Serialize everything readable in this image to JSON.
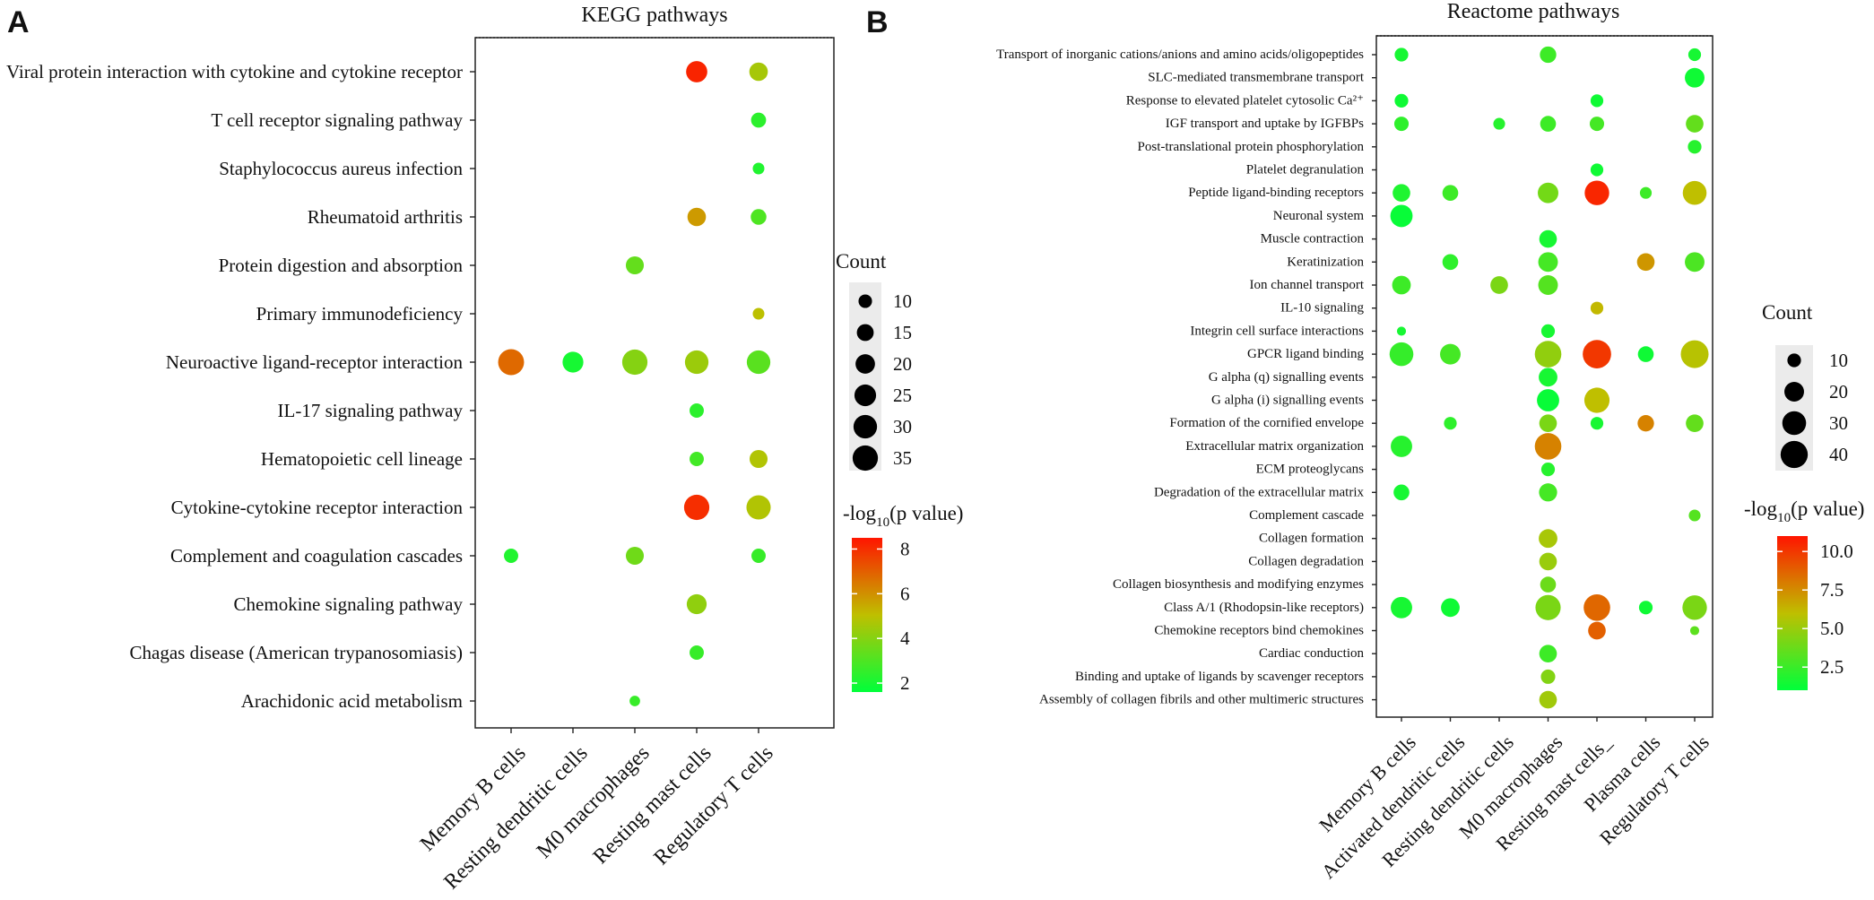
{
  "color_scale": {
    "low": "#00ff3a",
    "mid": "#bfbf00",
    "high": "#ff1500"
  },
  "chart_data": [
    {
      "type": "scatter",
      "panel_label": "A",
      "title": "KEGG pathways",
      "x_categories": [
        "Memory B cells",
        "Resting dendritic cells",
        "M0 macrophages",
        "Resting mast cells",
        "Regulatory T cells"
      ],
      "y_categories": [
        "Viral protein interaction with cytokine and cytokine receptor",
        "T cell receptor signaling pathway",
        "Staphylococcus aureus infection",
        "Rheumatoid arthritis",
        "Protein digestion and absorption",
        "Primary immunodeficiency",
        "Neuroactive ligand-receptor interaction",
        "IL-17 signaling pathway",
        "Hematopoietic cell lineage",
        "Cytokine-cytokine receptor interaction",
        "Complement and coagulation cascades",
        "Chemokine signaling pathway",
        "Chagas disease (American trypanosomiasis)",
        "Arachidonic acid metabolism"
      ],
      "points": [
        {
          "x": "Resting mast cells",
          "y": "Viral protein interaction with cytokine and cytokine receptor",
          "count": 24,
          "neg_log10_p": 8.2
        },
        {
          "x": "Regulatory T cells",
          "y": "Viral protein interaction with cytokine and cytokine receptor",
          "count": 18,
          "neg_log10_p": 4.6
        },
        {
          "x": "Regulatory T cells",
          "y": "T cell receptor signaling pathway",
          "count": 12,
          "neg_log10_p": 2.4
        },
        {
          "x": "Regulatory T cells",
          "y": "Staphylococcus aureus infection",
          "count": 8,
          "neg_log10_p": 2.2
        },
        {
          "x": "Resting mast cells",
          "y": "Rheumatoid arthritis",
          "count": 18,
          "neg_log10_p": 5.8
        },
        {
          "x": "Regulatory T cells",
          "y": "Rheumatoid arthritis",
          "count": 13,
          "neg_log10_p": 3.0
        },
        {
          "x": "M0 macrophages",
          "y": "Protein digestion and absorption",
          "count": 17,
          "neg_log10_p": 3.4
        },
        {
          "x": "Regulatory T cells",
          "y": "Primary immunodeficiency",
          "count": 8,
          "neg_log10_p": 5.0
        },
        {
          "x": "Memory B cells",
          "y": "Neuroactive ligand-receptor interaction",
          "count": 37,
          "neg_log10_p": 6.8
        },
        {
          "x": "Resting dendritic cells",
          "y": "Neuroactive ligand-receptor interaction",
          "count": 23,
          "neg_log10_p": 2.0
        },
        {
          "x": "M0 macrophages",
          "y": "Neuroactive ligand-receptor interaction",
          "count": 35,
          "neg_log10_p": 4.0
        },
        {
          "x": "Resting mast cells",
          "y": "Neuroactive ligand-receptor interaction",
          "count": 30,
          "neg_log10_p": 4.4
        },
        {
          "x": "Regulatory T cells",
          "y": "Neuroactive ligand-receptor interaction",
          "count": 30,
          "neg_log10_p": 3.2
        },
        {
          "x": "Resting mast cells",
          "y": "IL-17 signaling pathway",
          "count": 11,
          "neg_log10_p": 2.4
        },
        {
          "x": "Resting mast cells",
          "y": "Hematopoietic cell lineage",
          "count": 11,
          "neg_log10_p": 2.8
        },
        {
          "x": "Regulatory T cells",
          "y": "Hematopoietic cell lineage",
          "count": 17,
          "neg_log10_p": 4.8
        },
        {
          "x": "Resting mast cells",
          "y": "Cytokine-cytokine receptor interaction",
          "count": 35,
          "neg_log10_p": 8.0
        },
        {
          "x": "Regulatory T cells",
          "y": "Cytokine-cytokine receptor interaction",
          "count": 32,
          "neg_log10_p": 4.8
        },
        {
          "x": "Memory B cells",
          "y": "Complement and coagulation cascades",
          "count": 11,
          "neg_log10_p": 2.2
        },
        {
          "x": "M0 macrophages",
          "y": "Complement and coagulation cascades",
          "count": 17,
          "neg_log10_p": 3.6
        },
        {
          "x": "Regulatory T cells",
          "y": "Complement and coagulation cascades",
          "count": 11,
          "neg_log10_p": 2.6
        },
        {
          "x": "Resting mast cells",
          "y": "Chemokine signaling pathway",
          "count": 21,
          "neg_log10_p": 4.2
        },
        {
          "x": "Resting mast cells",
          "y": "Chagas disease (American trypanosomiasis)",
          "count": 11,
          "neg_log10_p": 2.6
        },
        {
          "x": "M0 macrophages",
          "y": "Arachidonic acid metabolism",
          "count": 7,
          "neg_log10_p": 2.6
        }
      ],
      "size_legend": {
        "title": "Count",
        "values": [
          10,
          15,
          20,
          25,
          30,
          35
        ]
      },
      "size_domain": [
        5,
        40
      ],
      "color_legend": {
        "title_prefix": "-log",
        "title_sub": "10",
        "title_suffix": "(p value)",
        "ticks": [
          2,
          4,
          6,
          8
        ],
        "range": [
          1.6,
          8.5
        ]
      }
    },
    {
      "type": "scatter",
      "panel_label": "B",
      "title": "Reactome pathways",
      "x_categories": [
        "Memory B cells",
        "Activated dendritic cells",
        "Resting dendritic cells",
        "M0 macrophages",
        "Resting mast cells_",
        "Plasma cells",
        "Regulatory T cells"
      ],
      "y_categories": [
        "Transport of inorganic cations/anions and amino acids/oligopeptides",
        "SLC-mediated transmembrane transport",
        "Response to elevated platelet cytosolic Ca²⁺",
        "IGF transport and uptake by IGFBPs",
        "Post-translational protein phosphorylation",
        "Platelet degranulation",
        "Peptide ligand-binding receptors",
        "Neuronal system",
        "Muscle contraction",
        "Keratinization",
        "Ion channel transport",
        "IL-10 signaling",
        "Integrin cell surface interactions",
        "GPCR ligand binding",
        "G alpha (q) signalling events",
        "G alpha (i) signalling events",
        "Formation of the cornified envelope",
        "Extracellular matrix organization",
        "ECM proteoglycans",
        "Degradation of the extracellular matrix",
        "Complement cascade",
        "Collagen formation",
        "Collagen degradation",
        "Collagen biosynthesis and modifying enzymes",
        "Class A/1 (Rhodopsin-like receptors)",
        "Chemokine receptors bind chemokines",
        "Cardiac conduction",
        "Binding and uptake of ligands by scavenger receptors",
        "Assembly of collagen fibrils and other multimeric structures"
      ],
      "points": [
        {
          "x": "Memory B cells",
          "y": "Transport of inorganic cations/anions and amino acids/oligopeptides",
          "count": 10,
          "neg_log10_p": 1.6
        },
        {
          "x": "M0 macrophages",
          "y": "Transport of inorganic cations/anions and amino acids/oligopeptides",
          "count": 14,
          "neg_log10_p": 2.6
        },
        {
          "x": "Regulatory T cells",
          "y": "Transport of inorganic cations/anions and amino acids/oligopeptides",
          "count": 9,
          "neg_log10_p": 1.6
        },
        {
          "x": "Regulatory T cells",
          "y": "SLC-mediated transmembrane transport",
          "count": 20,
          "neg_log10_p": 1.4
        },
        {
          "x": "Memory B cells",
          "y": "Response to elevated platelet cytosolic Ca²⁺",
          "count": 10,
          "neg_log10_p": 1.4
        },
        {
          "x": "Resting mast cells_",
          "y": "Response to elevated platelet cytosolic Ca²⁺",
          "count": 9,
          "neg_log10_p": 1.4
        },
        {
          "x": "Memory B cells",
          "y": "IGF transport and uptake by IGFBPs",
          "count": 11,
          "neg_log10_p": 2.2
        },
        {
          "x": "Resting dendritic cells",
          "y": "IGF transport and uptake by IGFBPs",
          "count": 8,
          "neg_log10_p": 2.0
        },
        {
          "x": "M0 macrophages",
          "y": "IGF transport and uptake by IGFBPs",
          "count": 13,
          "neg_log10_p": 2.6
        },
        {
          "x": "Resting mast cells_",
          "y": "IGF transport and uptake by IGFBPs",
          "count": 11,
          "neg_log10_p": 2.8
        },
        {
          "x": "Regulatory T cells",
          "y": "IGF transport and uptake by IGFBPs",
          "count": 16,
          "neg_log10_p": 3.6
        },
        {
          "x": "Regulatory T cells",
          "y": "Post-translational protein phosphorylation",
          "count": 10,
          "neg_log10_p": 2.0
        },
        {
          "x": "Resting mast cells_",
          "y": "Platelet degranulation",
          "count": 9,
          "neg_log10_p": 1.4
        },
        {
          "x": "Memory B cells",
          "y": "Peptide ligand-binding receptors",
          "count": 16,
          "neg_log10_p": 1.8
        },
        {
          "x": "Activated dendritic cells",
          "y": "Peptide ligand-binding receptors",
          "count": 13,
          "neg_log10_p": 2.6
        },
        {
          "x": "M0 macrophages",
          "y": "Peptide ligand-binding receptors",
          "count": 22,
          "neg_log10_p": 4.0
        },
        {
          "x": "Resting mast cells_",
          "y": "Peptide ligand-binding receptors",
          "count": 32,
          "neg_log10_p": 10.5
        },
        {
          "x": "Plasma cells",
          "y": "Peptide ligand-binding receptors",
          "count": 8,
          "neg_log10_p": 2.6
        },
        {
          "x": "Regulatory T cells",
          "y": "Peptide ligand-binding receptors",
          "count": 30,
          "neg_log10_p": 6.0
        },
        {
          "x": "Memory B cells",
          "y": "Neuronal system",
          "count": 26,
          "neg_log10_p": 1.2
        },
        {
          "x": "M0 macrophages",
          "y": "Muscle contraction",
          "count": 16,
          "neg_log10_p": 1.6
        },
        {
          "x": "Activated dendritic cells",
          "y": "Keratinization",
          "count": 13,
          "neg_log10_p": 2.2
        },
        {
          "x": "M0 macrophages",
          "y": "Keratinization",
          "count": 20,
          "neg_log10_p": 2.8
        },
        {
          "x": "Plasma cells",
          "y": "Keratinization",
          "count": 16,
          "neg_log10_p": 7.2
        },
        {
          "x": "Regulatory T cells",
          "y": "Keratinization",
          "count": 20,
          "neg_log10_p": 3.0
        },
        {
          "x": "Memory B cells",
          "y": "Ion channel transport",
          "count": 18,
          "neg_log10_p": 2.6
        },
        {
          "x": "Resting dendritic cells",
          "y": "Ion channel transport",
          "count": 16,
          "neg_log10_p": 4.2
        },
        {
          "x": "M0 macrophages",
          "y": "Ion channel transport",
          "count": 20,
          "neg_log10_p": 3.2
        },
        {
          "x": "Resting mast cells_",
          "y": "IL-10 signaling",
          "count": 9,
          "neg_log10_p": 6.2
        },
        {
          "x": "Memory B cells",
          "y": "Integrin cell surface interactions",
          "count": 6,
          "neg_log10_p": 1.6
        },
        {
          "x": "M0 macrophages",
          "y": "Integrin cell surface interactions",
          "count": 10,
          "neg_log10_p": 1.6
        },
        {
          "x": "Memory B cells",
          "y": "GPCR ligand binding",
          "count": 30,
          "neg_log10_p": 2.4
        },
        {
          "x": "Activated dendritic cells",
          "y": "GPCR ligand binding",
          "count": 22,
          "neg_log10_p": 2.8
        },
        {
          "x": "M0 macrophages",
          "y": "GPCR ligand binding",
          "count": 38,
          "neg_log10_p": 4.8
        },
        {
          "x": "Resting mast cells_",
          "y": "GPCR ligand binding",
          "count": 44,
          "neg_log10_p": 10.0
        },
        {
          "x": "Plasma cells",
          "y": "GPCR ligand binding",
          "count": 13,
          "neg_log10_p": 1.4
        },
        {
          "x": "Regulatory T cells",
          "y": "GPCR ligand binding",
          "count": 42,
          "neg_log10_p": 5.8
        },
        {
          "x": "M0 macrophages",
          "y": "G alpha (q) signalling events",
          "count": 18,
          "neg_log10_p": 1.6
        },
        {
          "x": "M0 macrophages",
          "y": "G alpha (i) signalling events",
          "count": 26,
          "neg_log10_p": 1.2
        },
        {
          "x": "Resting mast cells_",
          "y": "G alpha (i) signalling events",
          "count": 34,
          "neg_log10_p": 6.0
        },
        {
          "x": "Activated dendritic cells",
          "y": "Formation of the cornified envelope",
          "count": 9,
          "neg_log10_p": 2.2
        },
        {
          "x": "M0 macrophages",
          "y": "Formation of the cornified envelope",
          "count": 16,
          "neg_log10_p": 4.2
        },
        {
          "x": "Resting mast cells_",
          "y": "Formation of the cornified envelope",
          "count": 9,
          "neg_log10_p": 1.6
        },
        {
          "x": "Plasma cells",
          "y": "Formation of the cornified envelope",
          "count": 14,
          "neg_log10_p": 7.8
        },
        {
          "x": "Regulatory T cells",
          "y": "Formation of the cornified envelope",
          "count": 16,
          "neg_log10_p": 3.6
        },
        {
          "x": "Memory B cells",
          "y": "Extracellular matrix organization",
          "count": 24,
          "neg_log10_p": 2.0
        },
        {
          "x": "M0 macrophages",
          "y": "Extracellular matrix organization",
          "count": 38,
          "neg_log10_p": 7.8
        },
        {
          "x": "M0 macrophages",
          "y": "ECM proteoglycans",
          "count": 10,
          "neg_log10_p": 2.0
        },
        {
          "x": "Memory B cells",
          "y": "Degradation of the extracellular matrix",
          "count": 13,
          "neg_log10_p": 1.6
        },
        {
          "x": "M0 macrophages",
          "y": "Degradation of the extracellular matrix",
          "count": 17,
          "neg_log10_p": 2.8
        },
        {
          "x": "Regulatory T cells",
          "y": "Complement cascade",
          "count": 8,
          "neg_log10_p": 3.2
        },
        {
          "x": "M0 macrophages",
          "y": "Collagen formation",
          "count": 18,
          "neg_log10_p": 5.4
        },
        {
          "x": "M0 macrophages",
          "y": "Collagen degradation",
          "count": 16,
          "neg_log10_p": 5.0
        },
        {
          "x": "M0 macrophages",
          "y": "Collagen biosynthesis and modifying enzymes",
          "count": 13,
          "neg_log10_p": 3.8
        },
        {
          "x": "Memory B cells",
          "y": "Class A/1 (Rhodopsin-like receptors)",
          "count": 24,
          "neg_log10_p": 1.6
        },
        {
          "x": "Activated dendritic cells",
          "y": "Class A/1 (Rhodopsin-like receptors)",
          "count": 18,
          "neg_log10_p": 1.4
        },
        {
          "x": "M0 macrophages",
          "y": "Class A/1 (Rhodopsin-like receptors)",
          "count": 34,
          "neg_log10_p": 4.2
        },
        {
          "x": "Resting mast cells_",
          "y": "Class A/1 (Rhodopsin-like receptors)",
          "count": 38,
          "neg_log10_p": 8.6
        },
        {
          "x": "Plasma cells",
          "y": "Class A/1 (Rhodopsin-like receptors)",
          "count": 10,
          "neg_log10_p": 1.4
        },
        {
          "x": "Regulatory T cells",
          "y": "Class A/1 (Rhodopsin-like receptors)",
          "count": 32,
          "neg_log10_p": 4.2
        },
        {
          "x": "Resting mast cells_",
          "y": "Chemokine receptors bind chemokines",
          "count": 16,
          "neg_log10_p": 8.8
        },
        {
          "x": "Regulatory T cells",
          "y": "Chemokine receptors bind chemokines",
          "count": 6,
          "neg_log10_p": 3.4
        },
        {
          "x": "M0 macrophages",
          "y": "Cardiac conduction",
          "count": 16,
          "neg_log10_p": 2.6
        },
        {
          "x": "M0 macrophages",
          "y": "Binding and uptake of ligands by scavenger receptors",
          "count": 11,
          "neg_log10_p": 4.4
        },
        {
          "x": "M0 macrophages",
          "y": "Assembly of collagen fibrils and other multimeric structures",
          "count": 16,
          "neg_log10_p": 5.2
        }
      ],
      "size_legend": {
        "title": "Count",
        "values": [
          10,
          20,
          30,
          40
        ]
      },
      "size_domain": [
        5,
        45
      ],
      "color_legend": {
        "title_prefix": "-log",
        "title_sub": "10",
        "title_suffix": "(p value)",
        "ticks": [
          2.5,
          5.0,
          7.5,
          10.0
        ],
        "tick_labels": [
          "2.5",
          "5.0",
          "7.5",
          "10.0"
        ],
        "range": [
          1.0,
          11.0
        ]
      }
    }
  ]
}
